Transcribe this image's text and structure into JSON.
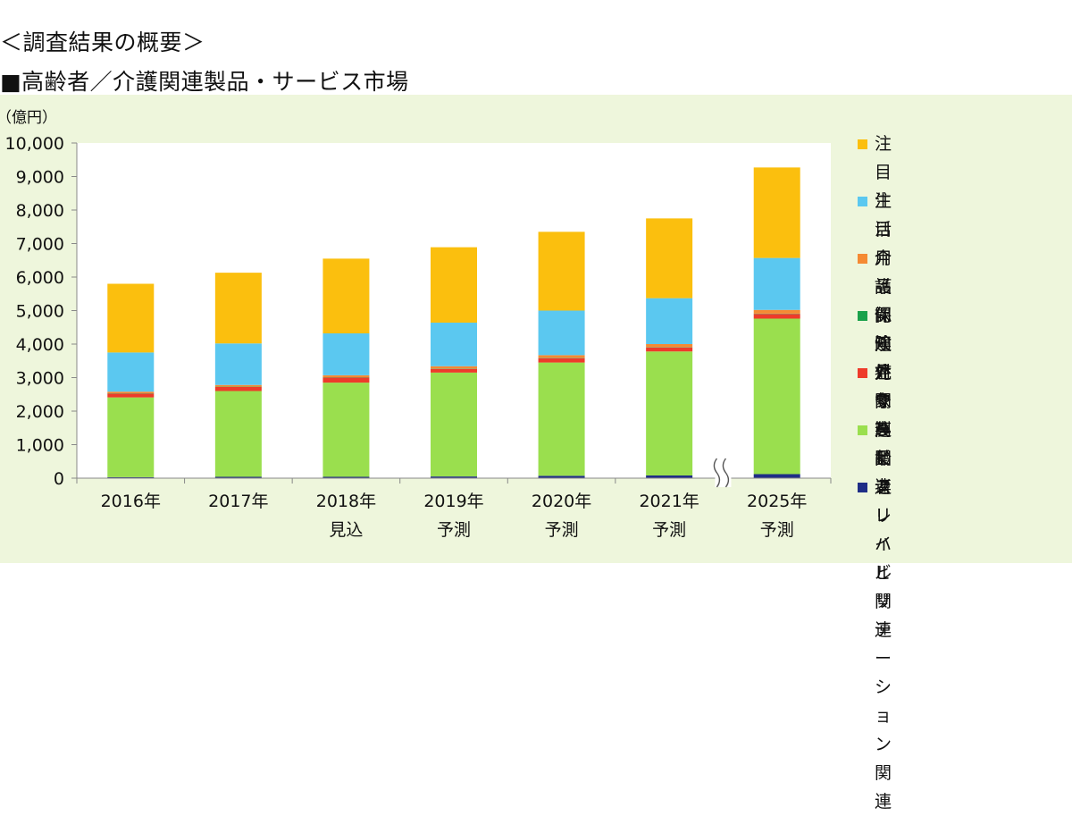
{
  "headings": {
    "line1": "＜調査結果の概要＞",
    "line2": "■高齢者／介護関連製品・サービス市場"
  },
  "chart_data": {
    "type": "bar",
    "stacked": true,
    "unit_label": "（億円）",
    "ylim": [
      0,
      10000
    ],
    "y_ticks": [
      0,
      1000,
      2000,
      3000,
      4000,
      5000,
      6000,
      7000,
      8000,
      9000,
      10000
    ],
    "y_tick_labels": [
      "0",
      "1,000",
      "2,000",
      "3,000",
      "4,000",
      "5,000",
      "6,000",
      "7,000",
      "8,000",
      "9,000",
      "10,000"
    ],
    "categories": [
      [
        "2016年"
      ],
      [
        "2017年"
      ],
      [
        "2018年",
        "見込"
      ],
      [
        "2019年",
        "予測"
      ],
      [
        "2020年",
        "予測"
      ],
      [
        "2021年",
        "予測"
      ],
      [
        "2025年",
        "予測"
      ]
    ],
    "axis_break_between": [
      5,
      6
    ],
    "series": [
      {
        "name": "フレイル関連",
        "color": "#1f2d86",
        "values": [
          30,
          40,
          40,
          50,
          70,
          80,
          120
        ]
      },
      {
        "name": "高齢者リハビリ\nテーション関連",
        "color": "#9adf4e",
        "values": [
          2380,
          2560,
          2810,
          3100,
          3380,
          3700,
          4640
        ]
      },
      {
        "name": "見守り関連",
        "color": "#ee3b2a",
        "values": [
          110,
          120,
          150,
          110,
          130,
          120,
          140
        ]
      },
      {
        "name": "認知症関連",
        "color": "#1aa14a",
        "values": [
          10,
          10,
          10,
          10,
          10,
          10,
          10
        ]
      },
      {
        "name": "介護保険外サービス",
        "color": "#f58a33",
        "values": [
          50,
          50,
          60,
          70,
          80,
          90,
          110
        ]
      },
      {
        "name": "注目介護保険対象製品",
        "color": "#5bc8f0",
        "values": [
          1170,
          1240,
          1250,
          1300,
          1330,
          1370,
          1550
        ]
      },
      {
        "name": "注目生活用品関連",
        "color": "#fbbf0e",
        "values": [
          2050,
          2110,
          2230,
          2250,
          2350,
          2380,
          2700
        ]
      }
    ],
    "legend_order": [
      6,
      5,
      4,
      3,
      2,
      1,
      0
    ],
    "legend_position": "right",
    "grid": false
  }
}
